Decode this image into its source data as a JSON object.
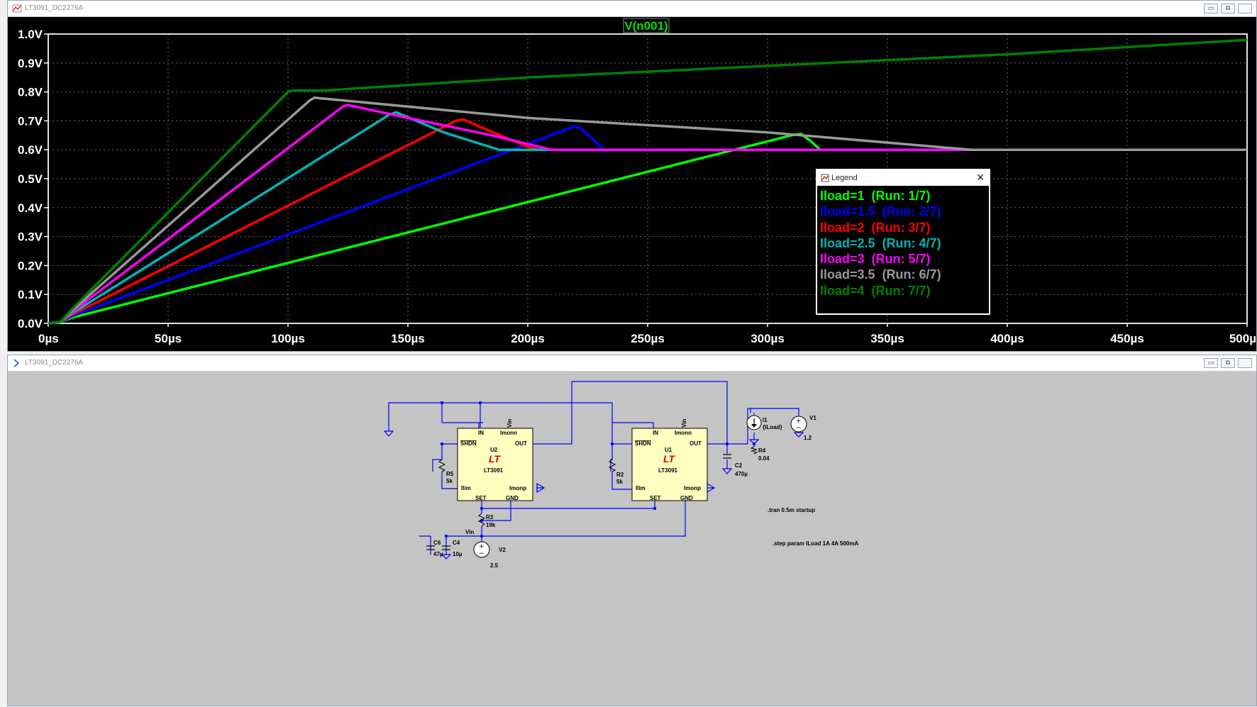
{
  "plot_window": {
    "title": "LT3091_DC2276A",
    "btn_min": "▭",
    "btn_max": "⧉",
    "btn_close": ""
  },
  "schematic_window": {
    "title": "LT3091_DC2276A",
    "btn_min": "▭",
    "btn_max": "⧉",
    "btn_close": ""
  },
  "trace_label": "V(n001)",
  "colors": {
    "plot_bg": "#000000",
    "schematic_bg": "#c4c4c4",
    "trace_label": "#00e000",
    "wire": "#0000ff",
    "component_fill": "#ffffc0"
  },
  "chart_data": {
    "type": "line",
    "title": "V(n001)",
    "xlabel": "",
    "ylabel": "",
    "xlim_us": [
      0,
      500
    ],
    "ylim": [
      0,
      1.0
    ],
    "x_ticks": [
      "0µs",
      "50µs",
      "100µs",
      "150µs",
      "200µs",
      "250µs",
      "300µs",
      "350µs",
      "400µs",
      "450µs",
      "500µ"
    ],
    "y_ticks": [
      "0.0V",
      "0.1V",
      "0.2V",
      "0.3V",
      "0.4V",
      "0.5V",
      "0.6V",
      "0.7V",
      "0.8V",
      "0.9V",
      "1.0V"
    ],
    "grid": true,
    "legend_position": "center-right",
    "series": [
      {
        "name": "Iload=1",
        "run": "(Run: 1/7)",
        "color": "#00ff00",
        "points": [
          [
            0,
            0
          ],
          [
            5,
            0.005
          ],
          [
            10,
            0.02
          ],
          [
            310,
            0.65
          ],
          [
            314,
            0.655
          ],
          [
            318,
            0.63
          ],
          [
            322,
            0.6
          ],
          [
            500,
            0.6
          ]
        ]
      },
      {
        "name": "Iload=1.5",
        "run": "(Run: 2/7)",
        "color": "#0000ff",
        "points": [
          [
            0,
            0
          ],
          [
            5,
            0.005
          ],
          [
            10,
            0.025
          ],
          [
            219,
            0.68
          ],
          [
            222,
            0.675
          ],
          [
            228,
            0.63
          ],
          [
            232,
            0.6
          ],
          [
            500,
            0.6
          ]
        ]
      },
      {
        "name": "Iload=2",
        "run": "(Run: 3/7)",
        "color": "#ff0000",
        "points": [
          [
            0,
            0
          ],
          [
            5,
            0.005
          ],
          [
            10,
            0.03
          ],
          [
            170,
            0.7
          ],
          [
            173,
            0.705
          ],
          [
            180,
            0.68
          ],
          [
            200,
            0.61
          ],
          [
            205,
            0.6
          ],
          [
            500,
            0.6
          ]
        ]
      },
      {
        "name": "Iload=2.5",
        "run": "(Run: 4/7)",
        "color": "#00b4b4",
        "points": [
          [
            0,
            0
          ],
          [
            5,
            0.005
          ],
          [
            10,
            0.035
          ],
          [
            142,
            0.72
          ],
          [
            145,
            0.73
          ],
          [
            165,
            0.66
          ],
          [
            188,
            0.6
          ],
          [
            500,
            0.6
          ]
        ]
      },
      {
        "name": "Iload=3",
        "run": "(Run: 5/7)",
        "color": "#ff00ff",
        "points": [
          [
            0,
            0
          ],
          [
            5,
            0.005
          ],
          [
            10,
            0.04
          ],
          [
            123,
            0.75
          ],
          [
            125,
            0.755
          ],
          [
            150,
            0.71
          ],
          [
            185,
            0.65
          ],
          [
            210,
            0.6
          ],
          [
            500,
            0.6
          ]
        ]
      },
      {
        "name": "Iload=3.5",
        "run": "(Run: 6/7)",
        "color": "#999999",
        "points": [
          [
            0,
            0
          ],
          [
            5,
            0.005
          ],
          [
            10,
            0.045
          ],
          [
            109,
            0.77
          ],
          [
            111,
            0.78
          ],
          [
            200,
            0.71
          ],
          [
            300,
            0.66
          ],
          [
            385,
            0.6
          ],
          [
            500,
            0.6
          ]
        ]
      },
      {
        "name": "Iload=4",
        "run": "(Run: 7/7)",
        "color": "#008000",
        "points": [
          [
            0,
            0
          ],
          [
            5,
            0.005
          ],
          [
            10,
            0.05
          ],
          [
            100,
            0.8
          ],
          [
            102,
            0.805
          ],
          [
            115,
            0.805
          ],
          [
            200,
            0.85
          ],
          [
            300,
            0.89
          ],
          [
            400,
            0.93
          ],
          [
            500,
            0.98
          ]
        ]
      }
    ]
  },
  "legend": {
    "title": "Legend",
    "close": "✕"
  },
  "schematic": {
    "u2": {
      "ref": "U2",
      "part": "LT3091",
      "pin_in": "IN",
      "pin_imonn": "Imonn",
      "pin_vin": "Vin",
      "pin_shdn": "SHDN",
      "pin_out": "OUT",
      "pin_ilim": "Ilim",
      "pin_imonp": "Imonp",
      "pin_set": "SET",
      "pin_gnd": "GND"
    },
    "u1": {
      "ref": "U1",
      "part": "LT3091",
      "pin_in": "IN",
      "pin_imonn": "Imonn",
      "pin_vin": "Vin",
      "pin_shdn": "SHDN",
      "pin_out": "OUT",
      "pin_ilim": "Ilim",
      "pin_imonp": "Imonp",
      "pin_set": "SET",
      "pin_gnd": "GND"
    },
    "r5": {
      "ref": "R5",
      "value": "5k"
    },
    "r2": {
      "ref": "R2",
      "value": "5k"
    },
    "r3": {
      "ref": "R3",
      "value": "19k"
    },
    "r4": {
      "ref": "R4",
      "value": "0.04"
    },
    "c2": {
      "ref": "C2",
      "value": "470µ"
    },
    "c6": {
      "ref": "C6",
      "value": "47µ"
    },
    "c4": {
      "ref": "C4",
      "value": "10µ"
    },
    "i1": {
      "ref": "I1",
      "value": "{ILoad}"
    },
    "v1": {
      "ref": "V1",
      "value": "1.2"
    },
    "v2": {
      "ref": "V2",
      "value": "2.5"
    },
    "net_vin": "Vin",
    "directive_tran": ".tran 0.5m startup",
    "directive_step": ".step param ILoad 1A 4A 500mA"
  }
}
